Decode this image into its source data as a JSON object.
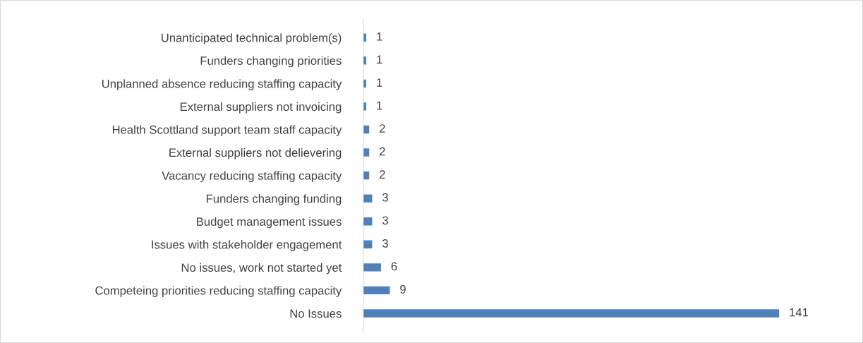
{
  "chart_data": {
    "type": "bar",
    "orientation": "horizontal",
    "categories": [
      "Unanticipated technical problem(s)",
      "Funders changing priorities",
      "Unplanned absence reducing staffing capacity",
      "External suppliers not invoicing",
      "Health Scottland support team staff capacity",
      "External suppliers not delievering",
      "Vacancy reducing staffing capacity",
      "Funders changing funding",
      "Budget management issues",
      "Issues with stakeholder engagement",
      "No issues, work not started yet",
      "Competeing priorities reducing staffing capacity",
      "No Issues"
    ],
    "values": [
      1,
      1,
      1,
      1,
      2,
      2,
      2,
      3,
      3,
      3,
      6,
      9,
      141
    ],
    "color": "#4f81bd",
    "data_labels": true,
    "tick_labels": "y",
    "grid": false,
    "legend": false
  }
}
